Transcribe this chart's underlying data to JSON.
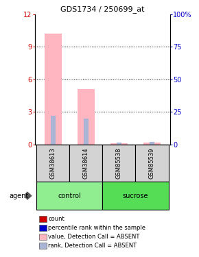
{
  "title": "GDS1734 / 250699_at",
  "samples": [
    "GSM38613",
    "GSM38614",
    "GSM85538",
    "GSM85539"
  ],
  "ylim_left": [
    0,
    12
  ],
  "ylim_right": [
    0,
    100
  ],
  "yticks_left": [
    0,
    3,
    6,
    9,
    12
  ],
  "yticks_right": [
    0,
    25,
    50,
    75,
    100
  ],
  "ytick_labels_right": [
    "0",
    "25",
    "50",
    "75",
    "100%"
  ],
  "pink_bars": [
    10.2,
    5.1,
    0.15,
    0.2
  ],
  "blue_bars_pct": [
    22.0,
    20.0,
    1.5,
    1.8
  ],
  "pink_color": "#ffb6c1",
  "blue_color": "#aab4d4",
  "left_color": "#cc0000",
  "right_color": "#0000cc",
  "legend_items": [
    {
      "label": "count",
      "color": "#cc0000"
    },
    {
      "label": "percentile rank within the sample",
      "color": "#0000cc"
    },
    {
      "label": "value, Detection Call = ABSENT",
      "color": "#ffb6c1"
    },
    {
      "label": "rank, Detection Call = ABSENT",
      "color": "#aab4d4"
    }
  ],
  "sample_box_color": "#d3d3d3",
  "control_color": "#90ee90",
  "sucrose_color": "#55dd55",
  "agent_label": "agent"
}
